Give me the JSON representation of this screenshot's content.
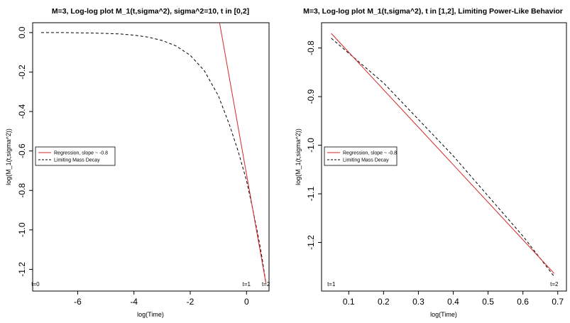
{
  "chart_data": [
    {
      "type": "line",
      "title": "M=3, Log-log plot M_1(t,sigma^2), sigma^2=10, t in [0,2]",
      "xlabel": "log(Time)",
      "ylabel": "log(M_1(t,sigma^2))",
      "xlim": [
        -7.6,
        0.8
      ],
      "ylim": [
        -1.31,
        0.05
      ],
      "xticks": [
        -6,
        -4,
        -2,
        0
      ],
      "xtick_labels": [
        "-6",
        "-4",
        "-2",
        "0"
      ],
      "yticks": [
        0.0,
        -0.2,
        -0.4,
        -0.6,
        -0.8,
        -1.0,
        -1.2
      ],
      "ytick_labels": [
        "0.0",
        "-0.2",
        "-0.4",
        "-0.6",
        "-0.8",
        "-1.0",
        "-1.2"
      ],
      "grid": false,
      "legend_position": "center-left",
      "legend": [
        {
          "label": "Regression, slope ~ -0.8",
          "color": "#d62728",
          "dash": "solid"
        },
        {
          "label": "Limiting Mass Decay",
          "color": "#000000",
          "dash": "dashed"
        }
      ],
      "annotations": [
        {
          "text": "t=0",
          "x": -7.5,
          "y": -1.27
        },
        {
          "text": "t=1",
          "x": 0.0,
          "y": -1.27
        },
        {
          "text": "t=2",
          "x": 0.69,
          "y": -1.27
        }
      ],
      "series": [
        {
          "name": "Limiting Mass Decay",
          "color": "#000000",
          "dash": "dashed",
          "x": [
            -7.3,
            -6.5,
            -5.5,
            -4.5,
            -4.0,
            -3.5,
            -3.0,
            -2.5,
            -2.0,
            -1.5,
            -1.0,
            -0.6,
            -0.3,
            0.0,
            0.2,
            0.4,
            0.55,
            0.69
          ],
          "y": [
            0.0,
            0.0,
            -0.002,
            -0.007,
            -0.013,
            -0.023,
            -0.04,
            -0.068,
            -0.115,
            -0.193,
            -0.32,
            -0.47,
            -0.6,
            -0.75,
            -0.88,
            -1.02,
            -1.14,
            -1.27
          ]
        },
        {
          "name": "Regression, slope ~ -0.8",
          "color": "#d62728",
          "dash": "solid",
          "x": [
            -0.97,
            0.69
          ],
          "y": [
            0.06,
            -1.27
          ]
        }
      ]
    },
    {
      "type": "line",
      "title": "M=3, Log-log plot M_1(t,sigma^2), t in [1,2], Limiting Power-Like Behavior",
      "xlabel": "log(Time)",
      "ylabel": "log(M_1(t,sigma^2))",
      "xlim": [
        0.022,
        0.725
      ],
      "ylim": [
        -1.3,
        -0.748
      ],
      "xticks": [
        0.1,
        0.2,
        0.3,
        0.4,
        0.5,
        0.6,
        0.7
      ],
      "xtick_labels": [
        "0.1",
        "0.2",
        "0.3",
        "0.4",
        "0.5",
        "0.6",
        "0.7"
      ],
      "yticks": [
        -0.8,
        -0.9,
        -1.0,
        -1.1,
        -1.2
      ],
      "ytick_labels": [
        "-0.8",
        "-0.9",
        "-1.0",
        "-1.1",
        "-1.2"
      ],
      "grid": false,
      "legend_position": "center-left",
      "legend": [
        {
          "label": "Regression, slope ~ -0.8",
          "color": "#d62728",
          "dash": "solid"
        },
        {
          "label": "Limiting Mass Decay",
          "color": "#000000",
          "dash": "dashed"
        }
      ],
      "annotations": [
        {
          "text": "t=1",
          "x": 0.05,
          "y": -1.28
        },
        {
          "text": "t=2",
          "x": 0.69,
          "y": -1.28
        }
      ],
      "series": [
        {
          "name": "Limiting Mass Decay",
          "color": "#000000",
          "dash": "dashed",
          "x": [
            0.05,
            0.2,
            0.4,
            0.6,
            0.69
          ],
          "y": [
            -0.78,
            -0.872,
            -1.022,
            -1.187,
            -1.27
          ]
        },
        {
          "name": "Regression, slope ~ -0.8",
          "color": "#d62728",
          "dash": "solid",
          "x": [
            0.05,
            0.69
          ],
          "y": [
            -0.77,
            -1.264
          ]
        }
      ]
    }
  ]
}
